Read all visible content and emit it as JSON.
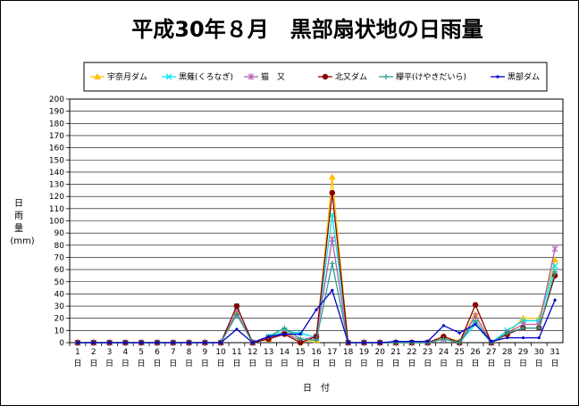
{
  "chart_data": {
    "type": "line",
    "title": "平成30年８月　黒部扇状地の日雨量",
    "ylabel": "日雨量",
    "yunit": "(mm)",
    "xlabel": "日　付",
    "x_suffix": "日",
    "ylim": [
      0,
      200
    ],
    "ytick_step": 10,
    "grid": true,
    "legend_position": "top",
    "x": [
      1,
      2,
      3,
      4,
      5,
      6,
      7,
      8,
      9,
      10,
      11,
      12,
      13,
      14,
      15,
      16,
      17,
      18,
      19,
      20,
      21,
      22,
      23,
      24,
      25,
      26,
      27,
      28,
      29,
      30,
      31
    ],
    "series": [
      {
        "name": "宇奈月ダム",
        "color": "#FFC000",
        "marker": "triangle",
        "values": [
          0,
          0,
          0,
          0,
          0,
          0,
          0,
          0,
          0,
          0,
          25,
          0,
          3,
          10,
          1,
          2,
          136,
          0,
          0,
          0,
          0,
          0,
          0,
          5,
          1,
          23,
          0,
          7,
          20,
          20,
          68
        ]
      },
      {
        "name": "黒薙(くろなぎ)",
        "color": "#00E5EE",
        "marker": "x",
        "values": [
          0,
          0,
          0,
          0,
          0,
          0,
          0,
          0,
          0,
          0,
          30,
          0,
          5,
          9,
          8,
          4,
          105,
          0,
          0,
          0,
          0,
          0,
          0,
          3,
          0,
          15,
          0,
          10,
          18,
          18,
          63
        ]
      },
      {
        "name": "猫　又",
        "color": "#B060B0",
        "marker": "asterisk",
        "values": [
          0,
          0,
          0,
          0,
          0,
          0,
          0,
          0,
          0,
          0,
          25,
          0,
          4,
          8,
          2,
          5,
          85,
          0,
          0,
          0,
          0,
          0,
          0,
          3,
          0,
          22,
          0,
          8,
          15,
          15,
          77
        ]
      },
      {
        "name": "北又ダム",
        "color": "#8B0000",
        "marker": "circle",
        "values": [
          0,
          0,
          0,
          0,
          0,
          0,
          0,
          0,
          0,
          0,
          30,
          0,
          3,
          7,
          0,
          5,
          123,
          0,
          0,
          0,
          0,
          0,
          0,
          5,
          0,
          31,
          0,
          7,
          12,
          12,
          55
        ]
      },
      {
        "name": "欅平(けやきだいら)",
        "color": "#2AA090",
        "marker": "plus",
        "values": [
          0,
          0,
          0,
          0,
          0,
          0,
          0,
          0,
          0,
          0,
          23,
          0,
          5,
          12,
          3,
          2,
          65,
          0,
          0,
          0,
          0,
          0,
          0,
          3,
          0,
          18,
          0,
          8,
          12,
          12,
          58
        ]
      },
      {
        "name": "黒部ダム",
        "color": "#0000CC",
        "marker": "dot",
        "values": [
          0,
          0,
          0,
          0,
          0,
          0,
          0,
          0,
          0,
          0,
          11,
          0,
          5,
          7,
          7,
          27,
          43,
          0,
          0,
          0,
          1,
          1,
          1,
          14,
          8,
          15,
          1,
          4,
          4,
          4,
          35
        ]
      }
    ]
  }
}
